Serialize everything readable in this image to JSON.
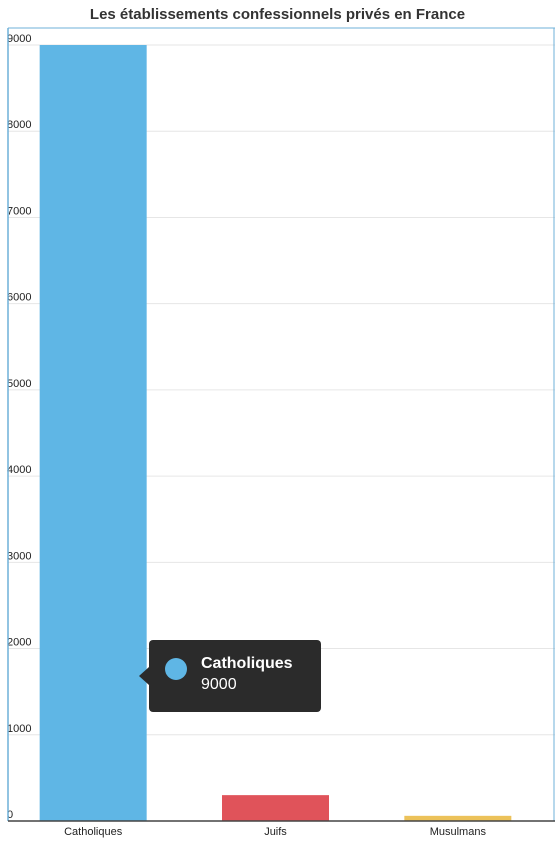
{
  "chart_data": {
    "type": "bar",
    "title": "Les établissements confessionnels privés en France",
    "categories": [
      "Catholiques",
      "Juifs",
      "Musulmans"
    ],
    "values": [
      9000,
      300,
      60
    ],
    "colors": [
      "#5fb6e5",
      "#e0535a",
      "#ecc25a"
    ],
    "ylim": [
      0,
      9000
    ],
    "yticks": [
      0,
      1000,
      2000,
      3000,
      4000,
      5000,
      6000,
      7000,
      8000,
      9000
    ],
    "grid": true,
    "xlabel": "",
    "ylabel": ""
  },
  "tooltip": {
    "name": "Catholiques",
    "value": "9000",
    "color": "#5fb6e5"
  }
}
